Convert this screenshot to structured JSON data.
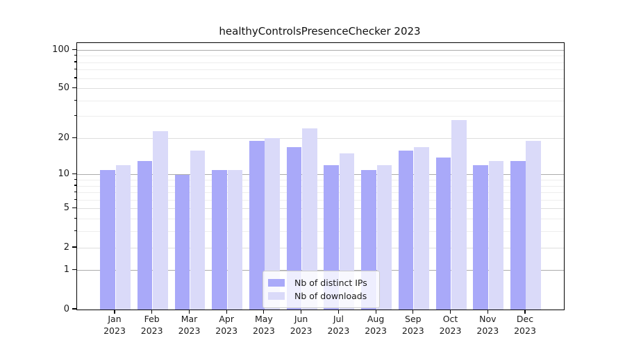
{
  "chart_data": {
    "type": "bar",
    "title": "healthyControlsPresenceChecker 2023",
    "categories": [
      "Jan",
      "Feb",
      "Mar",
      "Apr",
      "May",
      "Jun",
      "Jul",
      "Aug",
      "Sep",
      "Oct",
      "Nov",
      "Dec"
    ],
    "x_year_line": "2023",
    "series": [
      {
        "name": "Nb of distinct IPs",
        "color": "#a9a9f9",
        "values": [
          11,
          13,
          10,
          11,
          19,
          17,
          12,
          11,
          16,
          14,
          12,
          13
        ]
      },
      {
        "name": "Nb of downloads",
        "color": "#dadaf9",
        "values": [
          12,
          23,
          16,
          11,
          20,
          24,
          15,
          12,
          17,
          28,
          13,
          19
        ]
      }
    ],
    "yscale": "log1p",
    "ylim": [
      0,
      114
    ],
    "ytick_values": [
      0,
      1,
      2,
      5,
      10,
      20,
      50,
      100
    ],
    "grid_major_values": [
      1,
      10,
      100
    ],
    "grid_mid_values": [
      2,
      5,
      20,
      50
    ],
    "grid_minor_values": [
      3,
      4,
      6,
      7,
      8,
      9,
      30,
      40,
      60,
      70,
      80,
      90
    ],
    "grid_on": true,
    "legend_position": "lower center",
    "colors": {
      "grid_major": "#ababab",
      "grid_mid": "#dedede",
      "grid_minor": "#ededed",
      "axis": "#000000",
      "text": "#1a1a1a"
    }
  }
}
